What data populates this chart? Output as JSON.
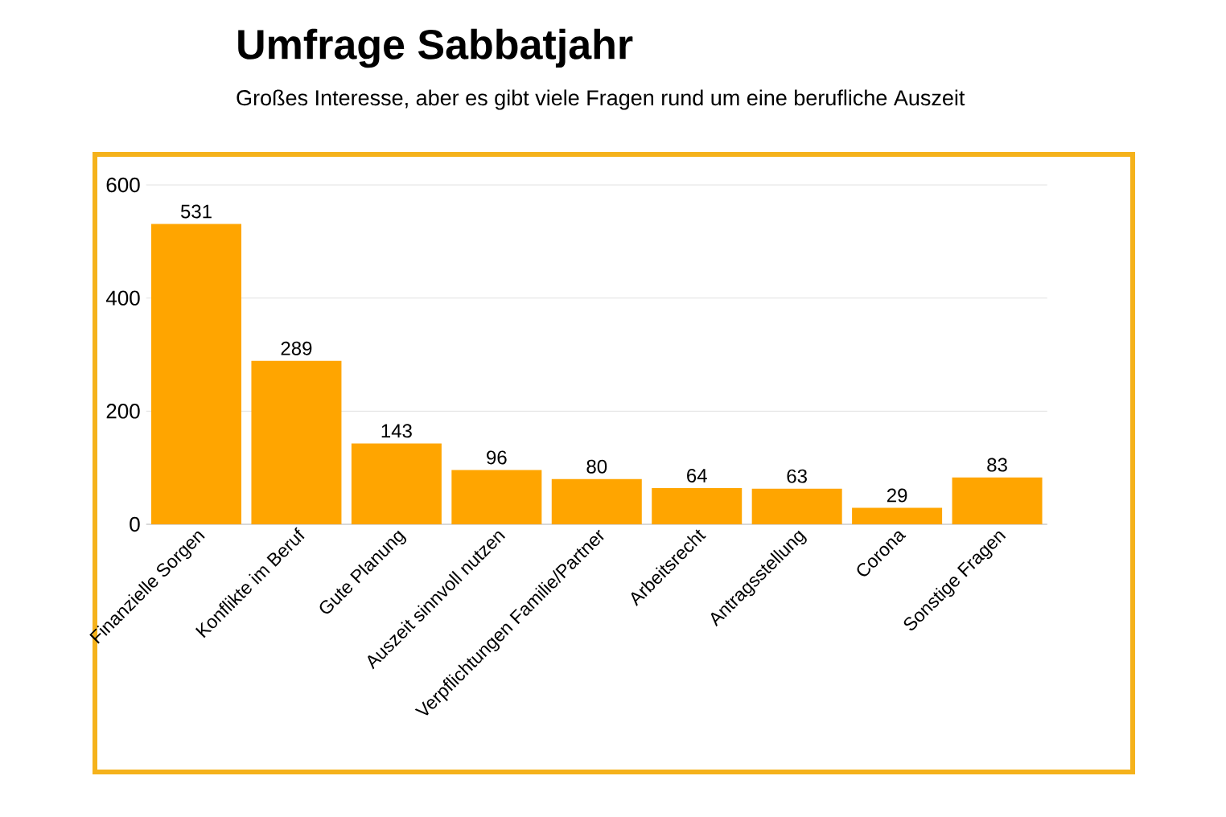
{
  "chart_data": {
    "type": "bar",
    "title": "Umfrage Sabbatjahr",
    "subtitle": "Großes Interesse, aber es gibt viele Fragen rund um eine berufliche Auszeit",
    "categories": [
      "Finanzielle Sorgen",
      "Konflikte im Beruf",
      "Gute Planung",
      "Auszeit sinnvoll nutzen",
      "Verpflichtungen Familie/Partner",
      "Arbeitsrecht",
      "Antragsstellung",
      "Corona",
      "Sonstige Fragen"
    ],
    "values": [
      531,
      289,
      143,
      96,
      80,
      64,
      63,
      29,
      83
    ],
    "color": "#ffa500",
    "ylim": [
      0,
      600
    ],
    "yticks": [
      0,
      200,
      400,
      600
    ],
    "grid": "y",
    "data_labels": true
  }
}
